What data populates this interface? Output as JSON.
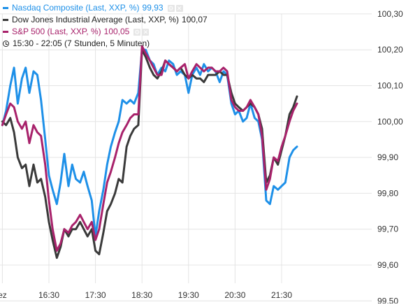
{
  "colors": {
    "nasdaq": "#1e90e8",
    "dow": "#3a3a3a",
    "sp500": "#a8226b",
    "grid": "#e4e4e4",
    "text": "#333333"
  },
  "legend": [
    {
      "name": "Nasdaq Composite (Last, XXP, %)",
      "value": "99,93",
      "color": "#1e90e8"
    },
    {
      "name": "Dow Jones Industrial Average (Last, XXP, %)",
      "value": "100,07",
      "color": "#3a3a3a"
    },
    {
      "name": "S&P 500 (Last, XXP, %)",
      "value": "100,05",
      "color": "#a8226b"
    }
  ],
  "period": {
    "icon": "clock-icon",
    "text": "15:30 - 22:05 (7 Stunden, 5 Minuten)"
  },
  "chart_data": {
    "type": "line",
    "ylim": [
      99.5,
      100.35
    ],
    "y_ticks": [
      "99,50",
      "99,60",
      "99,70",
      "99,80",
      "99,90",
      "100,00",
      "100,10",
      "100,20",
      "100,30"
    ],
    "x_ticks": [
      {
        "label": "ez",
        "t": 15.5
      },
      {
        "label": "16:30",
        "t": 16.5
      },
      {
        "label": "17:30",
        "t": 17.5
      },
      {
        "label": "18:30",
        "t": 18.5
      },
      {
        "label": "19:30",
        "t": 19.5
      },
      {
        "label": "20:30",
        "t": 20.5
      },
      {
        "label": "21:30",
        "t": 21.5
      }
    ],
    "grid": true,
    "legend_position": "top-left",
    "series": [
      {
        "name": "Nasdaq Composite (Last, XXP, %)",
        "color": "#1e90e8",
        "points": [
          [
            15.5,
            99.99
          ],
          [
            15.58,
            100.03
          ],
          [
            15.67,
            100.1
          ],
          [
            15.75,
            100.15
          ],
          [
            15.83,
            100.05
          ],
          [
            15.92,
            100.12
          ],
          [
            16.0,
            100.15
          ],
          [
            16.08,
            100.08
          ],
          [
            16.17,
            100.14
          ],
          [
            16.25,
            100.13
          ],
          [
            16.33,
            100.06
          ],
          [
            16.42,
            99.95
          ],
          [
            16.5,
            99.85
          ],
          [
            16.58,
            99.81
          ],
          [
            16.67,
            99.77
          ],
          [
            16.75,
            99.83
          ],
          [
            16.83,
            99.91
          ],
          [
            16.92,
            99.82
          ],
          [
            17.0,
            99.88
          ],
          [
            17.08,
            99.84
          ],
          [
            17.17,
            99.83
          ],
          [
            17.25,
            99.86
          ],
          [
            17.33,
            99.82
          ],
          [
            17.42,
            99.78
          ],
          [
            17.5,
            99.68
          ],
          [
            17.58,
            99.75
          ],
          [
            17.67,
            99.81
          ],
          [
            17.75,
            99.88
          ],
          [
            17.83,
            99.93
          ],
          [
            17.92,
            99.97
          ],
          [
            18.0,
            100.0
          ],
          [
            18.08,
            100.06
          ],
          [
            18.17,
            100.05
          ],
          [
            18.25,
            100.06
          ],
          [
            18.33,
            100.05
          ],
          [
            18.42,
            100.08
          ],
          [
            18.5,
            100.2
          ],
          [
            18.58,
            100.2
          ],
          [
            18.67,
            100.17
          ],
          [
            18.75,
            100.16
          ],
          [
            18.83,
            100.13
          ],
          [
            18.92,
            100.15
          ],
          [
            19.0,
            100.14
          ],
          [
            19.08,
            100.17
          ],
          [
            19.17,
            100.16
          ],
          [
            19.25,
            100.13
          ],
          [
            19.33,
            100.14
          ],
          [
            19.42,
            100.13
          ],
          [
            19.5,
            100.08
          ],
          [
            19.58,
            100.13
          ],
          [
            19.67,
            100.15
          ],
          [
            19.75,
            100.13
          ],
          [
            19.83,
            100.16
          ],
          [
            19.92,
            100.14
          ],
          [
            20.0,
            100.15
          ],
          [
            20.08,
            100.14
          ],
          [
            20.17,
            100.11
          ],
          [
            20.25,
            100.14
          ],
          [
            20.33,
            100.13
          ],
          [
            20.42,
            100.05
          ],
          [
            20.5,
            100.02
          ],
          [
            20.58,
            100.03
          ],
          [
            20.67,
            100.0
          ],
          [
            20.75,
            100.01
          ],
          [
            20.83,
            100.05
          ],
          [
            20.92,
            100.01
          ],
          [
            21.0,
            100.0
          ],
          [
            21.08,
            99.95
          ],
          [
            21.17,
            99.78
          ],
          [
            21.25,
            99.77
          ],
          [
            21.33,
            99.82
          ],
          [
            21.42,
            99.81
          ],
          [
            21.5,
            99.82
          ],
          [
            21.58,
            99.83
          ],
          [
            21.67,
            99.9
          ],
          [
            21.75,
            99.92
          ],
          [
            21.83,
            99.93
          ]
        ]
      },
      {
        "name": "Dow Jones Industrial Average (Last, XXP, %)",
        "color": "#3a3a3a",
        "points": [
          [
            15.5,
            100.0
          ],
          [
            15.58,
            99.99
          ],
          [
            15.67,
            100.01
          ],
          [
            15.75,
            99.97
          ],
          [
            15.83,
            99.9
          ],
          [
            15.92,
            99.87
          ],
          [
            16.0,
            99.88
          ],
          [
            16.08,
            99.82
          ],
          [
            16.17,
            99.88
          ],
          [
            16.25,
            99.83
          ],
          [
            16.33,
            99.84
          ],
          [
            16.42,
            99.79
          ],
          [
            16.5,
            99.72
          ],
          [
            16.58,
            99.67
          ],
          [
            16.67,
            99.62
          ],
          [
            16.75,
            99.65
          ],
          [
            16.83,
            99.7
          ],
          [
            16.92,
            99.68
          ],
          [
            17.0,
            99.7
          ],
          [
            17.08,
            99.7
          ],
          [
            17.17,
            99.72
          ],
          [
            17.25,
            99.7
          ],
          [
            17.33,
            99.68
          ],
          [
            17.42,
            99.7
          ],
          [
            17.5,
            99.64
          ],
          [
            17.58,
            99.63
          ],
          [
            17.67,
            99.69
          ],
          [
            17.75,
            99.75
          ],
          [
            17.83,
            99.77
          ],
          [
            17.92,
            99.8
          ],
          [
            18.0,
            99.84
          ],
          [
            18.08,
            99.83
          ],
          [
            18.17,
            99.93
          ],
          [
            18.25,
            99.96
          ],
          [
            18.33,
            99.98
          ],
          [
            18.42,
            99.99
          ],
          [
            18.5,
            100.2
          ],
          [
            18.58,
            100.18
          ],
          [
            18.67,
            100.15
          ],
          [
            18.75,
            100.13
          ],
          [
            18.83,
            100.12
          ],
          [
            18.92,
            100.14
          ],
          [
            19.0,
            100.17
          ],
          [
            19.08,
            100.16
          ],
          [
            19.17,
            100.15
          ],
          [
            19.25,
            100.14
          ],
          [
            19.33,
            100.15
          ],
          [
            19.42,
            100.13
          ],
          [
            19.5,
            100.12
          ],
          [
            19.58,
            100.13
          ],
          [
            19.67,
            100.12
          ],
          [
            19.75,
            100.12
          ],
          [
            19.83,
            100.11
          ],
          [
            19.92,
            100.13
          ],
          [
            20.0,
            100.13
          ],
          [
            20.08,
            100.13
          ],
          [
            20.17,
            100.14
          ],
          [
            20.25,
            100.13
          ],
          [
            20.33,
            100.13
          ],
          [
            20.42,
            100.08
          ],
          [
            20.5,
            100.05
          ],
          [
            20.58,
            100.04
          ],
          [
            20.67,
            100.03
          ],
          [
            20.75,
            100.04
          ],
          [
            20.83,
            100.05
          ],
          [
            20.92,
            100.04
          ],
          [
            21.0,
            100.02
          ],
          [
            21.08,
            99.98
          ],
          [
            21.17,
            99.83
          ],
          [
            21.25,
            99.85
          ],
          [
            21.33,
            99.9
          ],
          [
            21.42,
            99.88
          ],
          [
            21.5,
            99.92
          ],
          [
            21.58,
            99.96
          ],
          [
            21.67,
            100.02
          ],
          [
            21.75,
            100.04
          ],
          [
            21.83,
            100.07
          ]
        ]
      },
      {
        "name": "S&P 500 (Last, XXP, %)",
        "color": "#a8226b",
        "points": [
          [
            15.5,
            99.99
          ],
          [
            15.58,
            100.02
          ],
          [
            15.67,
            100.05
          ],
          [
            15.75,
            100.04
          ],
          [
            15.83,
            100.0
          ],
          [
            15.92,
            99.98
          ],
          [
            16.0,
            100.0
          ],
          [
            16.08,
            99.94
          ],
          [
            16.17,
            99.99
          ],
          [
            16.25,
            99.97
          ],
          [
            16.33,
            99.96
          ],
          [
            16.42,
            99.88
          ],
          [
            16.5,
            99.78
          ],
          [
            16.58,
            99.7
          ],
          [
            16.67,
            99.64
          ],
          [
            16.75,
            99.66
          ],
          [
            16.83,
            99.7
          ],
          [
            16.92,
            99.69
          ],
          [
            17.0,
            99.71
          ],
          [
            17.08,
            99.72
          ],
          [
            17.17,
            99.74
          ],
          [
            17.25,
            99.72
          ],
          [
            17.33,
            99.7
          ],
          [
            17.42,
            99.72
          ],
          [
            17.5,
            99.67
          ],
          [
            17.58,
            99.7
          ],
          [
            17.67,
            99.77
          ],
          [
            17.75,
            99.83
          ],
          [
            17.83,
            99.86
          ],
          [
            17.92,
            99.9
          ],
          [
            18.0,
            99.94
          ],
          [
            18.08,
            99.97
          ],
          [
            18.17,
            99.99
          ],
          [
            18.25,
            100.01
          ],
          [
            18.33,
            100.02
          ],
          [
            18.42,
            100.02
          ],
          [
            18.5,
            100.21
          ],
          [
            18.58,
            100.19
          ],
          [
            18.67,
            100.17
          ],
          [
            18.75,
            100.15
          ],
          [
            18.83,
            100.13
          ],
          [
            18.92,
            100.13
          ],
          [
            19.0,
            100.17
          ],
          [
            19.08,
            100.16
          ],
          [
            19.17,
            100.15
          ],
          [
            19.25,
            100.14
          ],
          [
            19.33,
            100.15
          ],
          [
            19.42,
            100.16
          ],
          [
            19.5,
            100.12
          ],
          [
            19.58,
            100.14
          ],
          [
            19.67,
            100.16
          ],
          [
            19.75,
            100.15
          ],
          [
            19.83,
            100.14
          ],
          [
            19.92,
            100.15
          ],
          [
            20.0,
            100.15
          ],
          [
            20.08,
            100.14
          ],
          [
            20.17,
            100.14
          ],
          [
            20.25,
            100.15
          ],
          [
            20.33,
            100.14
          ],
          [
            20.42,
            100.06
          ],
          [
            20.5,
            100.04
          ],
          [
            20.58,
            100.03
          ],
          [
            20.67,
            100.03
          ],
          [
            20.75,
            100.04
          ],
          [
            20.83,
            100.06
          ],
          [
            20.92,
            100.04
          ],
          [
            21.0,
            100.02
          ],
          [
            21.08,
            99.96
          ],
          [
            21.17,
            99.81
          ],
          [
            21.25,
            99.84
          ],
          [
            21.33,
            99.9
          ],
          [
            21.42,
            99.89
          ],
          [
            21.5,
            99.93
          ],
          [
            21.58,
            99.96
          ],
          [
            21.67,
            100.0
          ],
          [
            21.75,
            100.03
          ],
          [
            21.83,
            100.05
          ]
        ]
      }
    ]
  }
}
